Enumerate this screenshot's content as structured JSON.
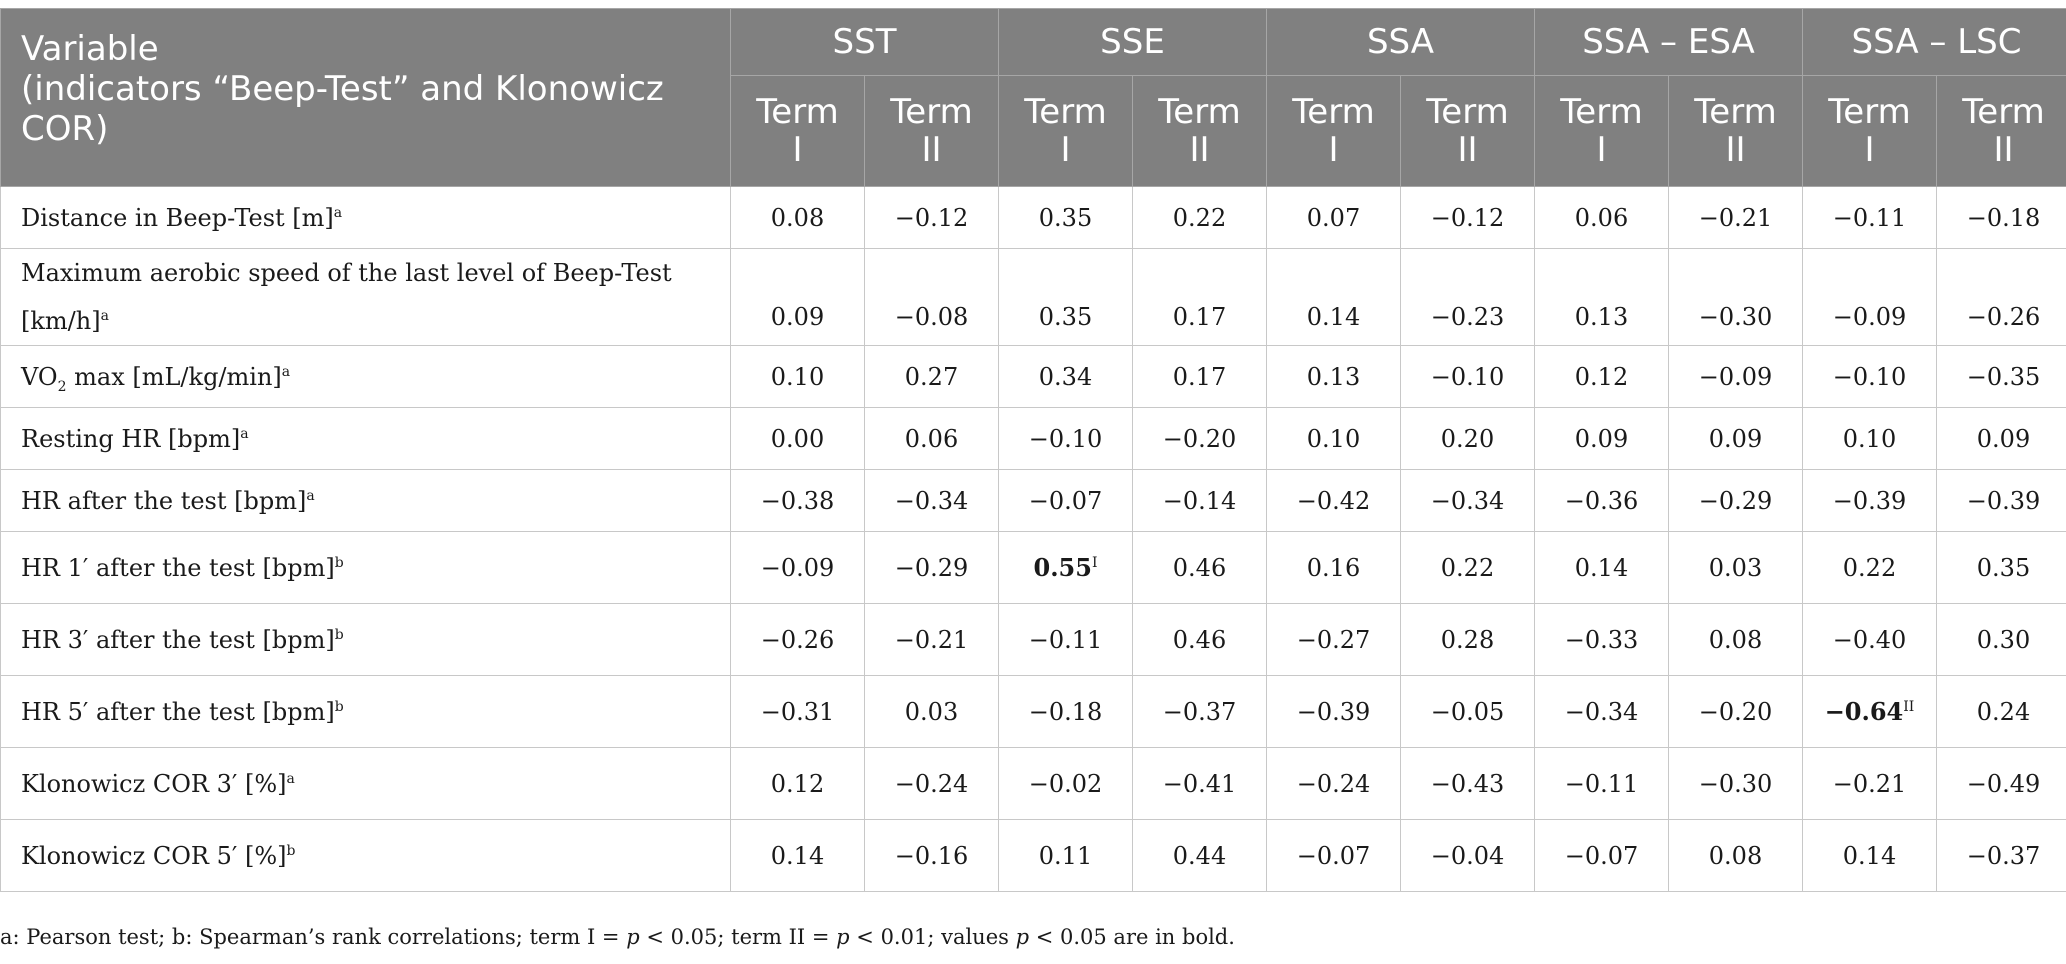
{
  "header": {
    "variable_label_line1": "Variable",
    "variable_label_line2": "(indicators “Beep-Test” and Klonowicz COR)",
    "groups": [
      "SST",
      "SSE",
      "SSA",
      "SSA – ESA",
      "SSA – LSC"
    ],
    "term_word": "Term",
    "term_numerals": [
      "I",
      "II"
    ]
  },
  "rows": [
    {
      "label": "Distance in Beep-Test [m]",
      "sup": "a",
      "values": [
        "0.08",
        "−0.12",
        "0.35",
        "0.22",
        "0.07",
        "−0.12",
        "0.06",
        "−0.21",
        "−0.11",
        "−0.18"
      ]
    },
    {
      "label": "Maximum aerobic speed of the last level of Beep-Test [km/h]",
      "sup": "a",
      "values": [
        "0.09",
        "−0.08",
        "0.35",
        "0.17",
        "0.14",
        "−0.23",
        "0.13",
        "−0.30",
        "−0.09",
        "−0.26"
      ]
    },
    {
      "label_pre": "VO",
      "label_sub": "2",
      "label_post": " max [mL/kg/min]",
      "sup": "a",
      "values": [
        "0.10",
        "0.27",
        "0.34",
        "0.17",
        "0.13",
        "−0.10",
        "0.12",
        "−0.09",
        "−0.10",
        "−0.35"
      ]
    },
    {
      "label": "Resting HR [bpm]",
      "sup": "a",
      "values": [
        "0.00",
        "0.06",
        "−0.10",
        "−0.20",
        "0.10",
        "0.20",
        "0.09",
        "0.09",
        "0.10",
        "0.09"
      ]
    },
    {
      "label": "HR after the test [bpm]",
      "sup": "a",
      "values": [
        "−0.38",
        "−0.34",
        "−0.07",
        "−0.14",
        "−0.42",
        "−0.34",
        "−0.36",
        "−0.29",
        "−0.39",
        "−0.39"
      ]
    },
    {
      "label": "HR 1′ after the test [bpm]",
      "sup": "b",
      "values": [
        "−0.09",
        "−0.29",
        "0.55",
        "0.46",
        "0.16",
        "0.22",
        "0.14",
        "0.03",
        "0.22",
        "0.35"
      ],
      "bold_index": 2,
      "bold_sup": "I"
    },
    {
      "label": "HR 3′ after the test [bpm]",
      "sup": "b",
      "values": [
        "−0.26",
        "−0.21",
        "−0.11",
        "0.46",
        "−0.27",
        "0.28",
        "−0.33",
        "0.08",
        "−0.40",
        "0.30"
      ]
    },
    {
      "label": "HR 5′ after the test [bpm]",
      "sup": "b",
      "values": [
        "−0.31",
        "0.03",
        "−0.18",
        "−0.37",
        "−0.39",
        "−0.05",
        "−0.34",
        "−0.20",
        "−0.64",
        "0.24"
      ],
      "bold_index": 8,
      "bold_sup": "II"
    },
    {
      "label": "Klonowicz COR 3′ [%]",
      "sup": "a",
      "values": [
        "0.12",
        "−0.24",
        "−0.02",
        "−0.41",
        "−0.24",
        "−0.43",
        "−0.11",
        "−0.30",
        "−0.21",
        "−0.49"
      ]
    },
    {
      "label": "Klonowicz COR 5′ [%]",
      "sup": "b",
      "values": [
        "0.14",
        "−0.16",
        "0.11",
        "0.44",
        "−0.07",
        "−0.04",
        "−0.07",
        "0.08",
        "0.14",
        "−0.37"
      ]
    }
  ],
  "footnote": {
    "part1": "a: Pearson test; b: Spearman’s rank correlations; term I = ",
    "p": "p",
    "part2": " < 0.05; term II = ",
    "part3": " < 0.01; values ",
    "part4": " < 0.05 are in bold."
  }
}
